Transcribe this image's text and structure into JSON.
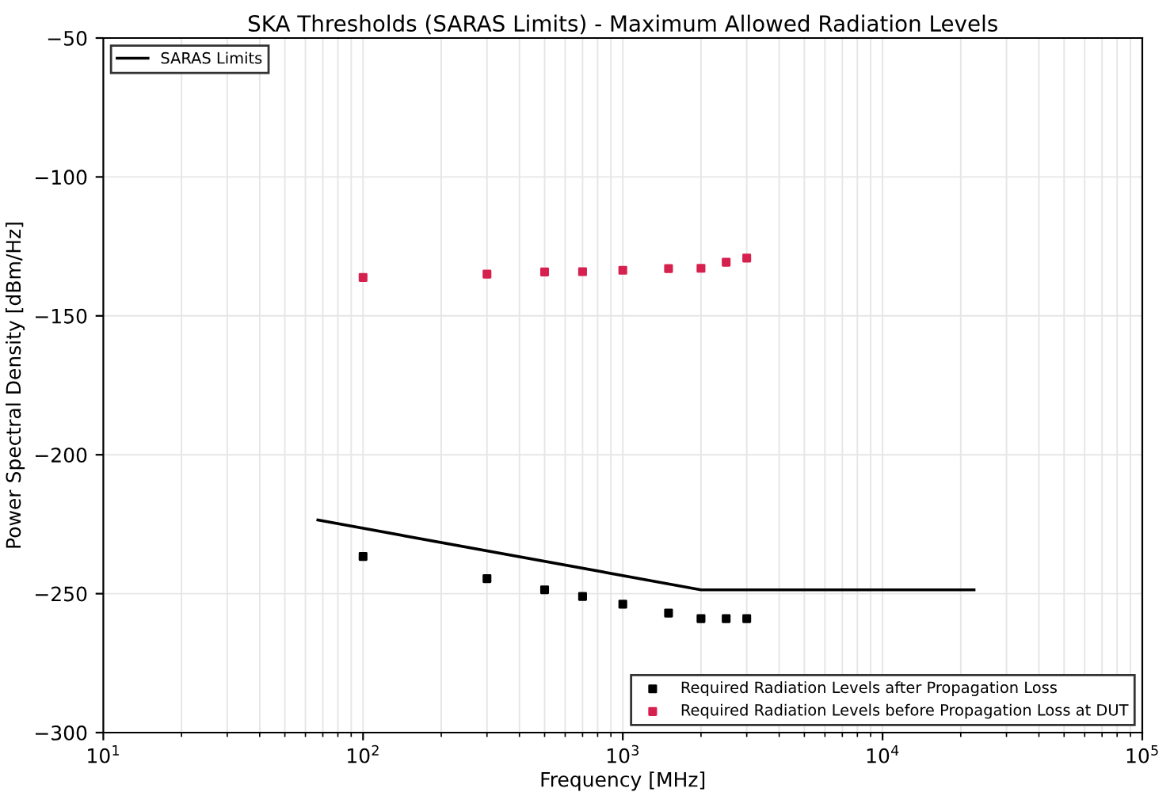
{
  "chart_data": {
    "type": "scatter",
    "title": "SKA Thresholds (SARAS Limits) - Maximum Allowed Radiation Levels",
    "xlabel": "Frequency [MHz]",
    "ylabel": "Power Spectral Density [dBm/Hz]",
    "log": "x",
    "xlim": [
      10,
      100000
    ],
    "xticks": [
      {
        "value": 10,
        "label": "10$^{1}$"
      },
      {
        "value": 100,
        "label": "10$^{2}$"
      },
      {
        "value": 1000,
        "label": "10$^{3}$"
      },
      {
        "value": 10000,
        "label": "10$^{4}$"
      },
      {
        "value": 100000,
        "label": "10$^{5}$"
      }
    ],
    "ylim": [
      -300,
      -50
    ],
    "yticks": [
      -300,
      -250,
      -200,
      -150,
      -100,
      -50
    ],
    "grid": true,
    "legend": "top left",
    "series": [
      {
        "name": "SARAS Limits",
        "type": "line",
        "color": "#000000",
        "x": [
          67,
          2000,
          22500
        ],
        "values": [
          -223.5,
          -248.6,
          -248.6
        ]
      },
      {
        "name": "Required Radiation Levels after Propagation Loss",
        "color": "#000000",
        "marker": "square",
        "x": [
          100,
          300,
          500,
          700,
          1000,
          1500,
          2000,
          2500,
          3000
        ],
        "values": [
          -236.6,
          -244.6,
          -248.6,
          -251,
          -253.8,
          -257,
          -259,
          -259,
          -259
        ]
      },
      {
        "name": "Required Radiation Levels before Propagation Loss at DUT",
        "color": "#d6214f",
        "marker": "square",
        "x": [
          100,
          300,
          500,
          700,
          1000,
          1500,
          2000,
          2500,
          3000
        ],
        "values": [
          -136.2,
          -135,
          -134.2,
          -134.1,
          -133.6,
          -133,
          -132.9,
          -130.7,
          -129.2
        ]
      }
    ]
  }
}
